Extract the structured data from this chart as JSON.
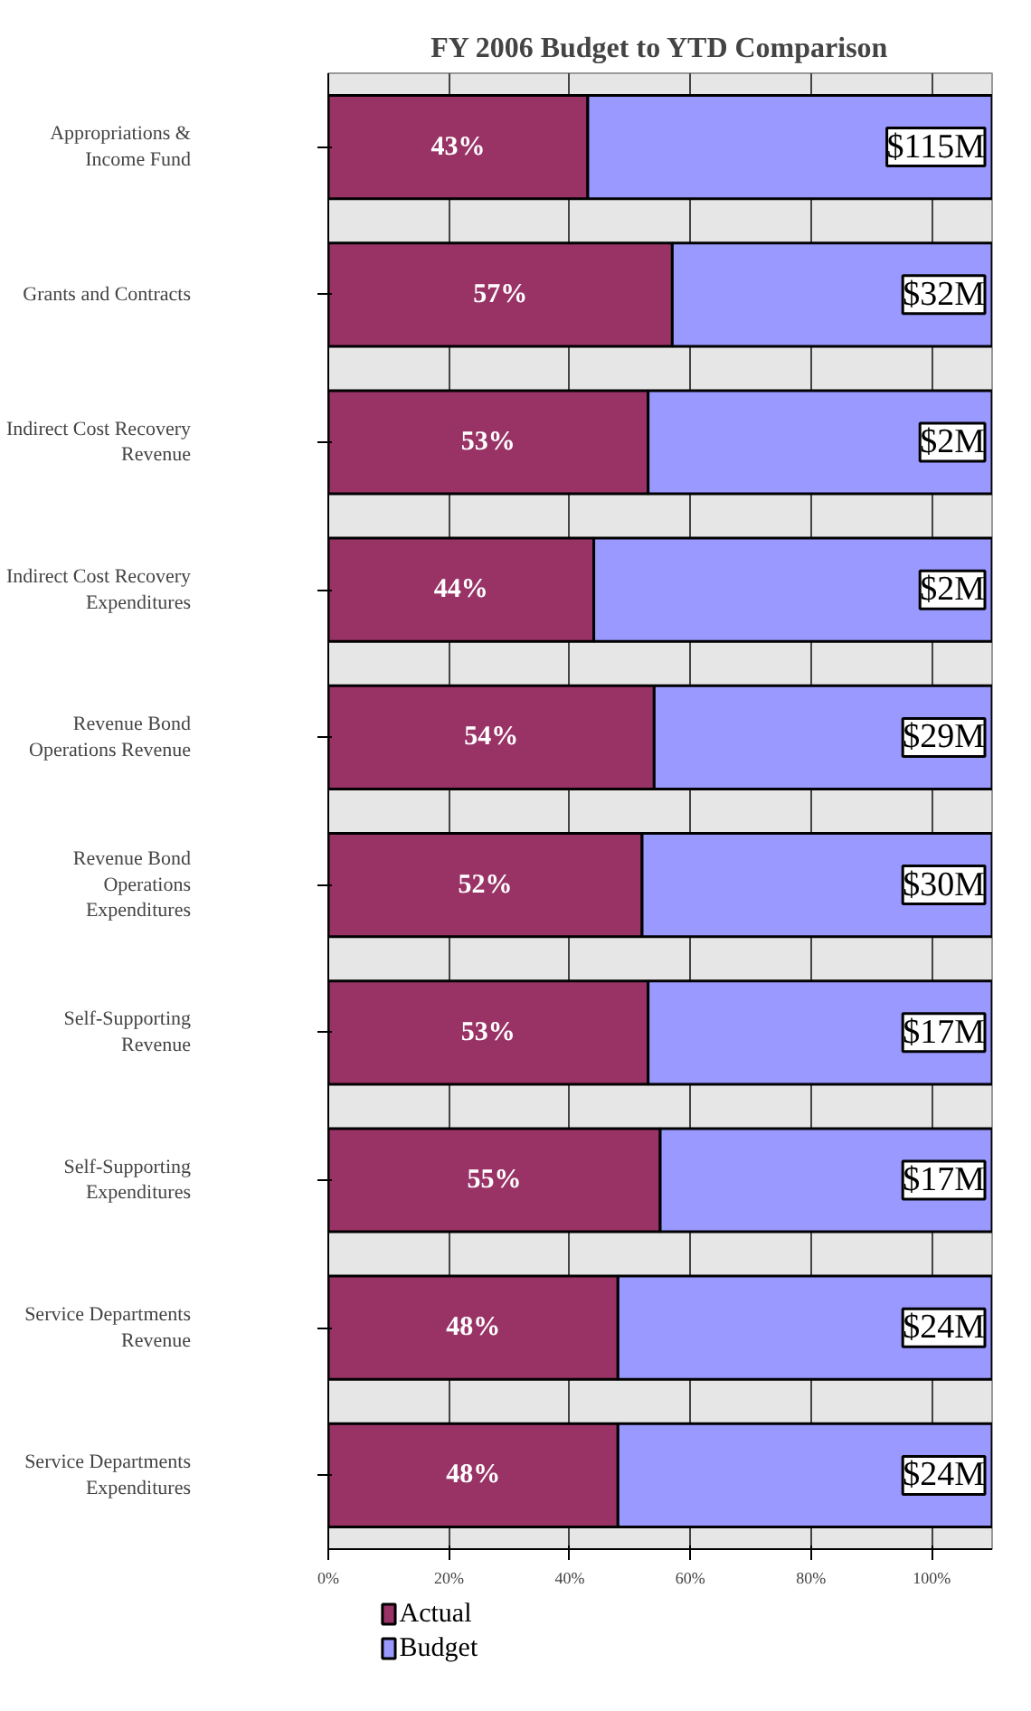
{
  "chart_data": {
    "type": "bar",
    "title": "FY 2006 Budget to YTD Comparison",
    "orientation": "horizontal",
    "stacked": true,
    "categories": [
      "Appropriations & Income Fund",
      "Grants and Contracts",
      "Indirect Cost Recovery Revenue",
      "Indirect Cost Recovery Expenditures",
      "Revenue Bond Operations Revenue",
      "Revenue Bond Operations Expenditures",
      "Self-Supporting Revenue",
      "Self-Supporting Expenditures",
      "Service Departments Revenue",
      "Service Departments Expenditures"
    ],
    "series": [
      {
        "name": "Actual",
        "color": "#993366",
        "values": [
          43,
          57,
          53,
          44,
          54,
          52,
          53,
          55,
          48,
          48
        ],
        "value_labels": [
          "43%",
          "57%",
          "53%",
          "44%",
          "54%",
          "52%",
          "53%",
          "55%",
          "48%",
          "48%"
        ]
      },
      {
        "name": "Budget",
        "color": "#9999ff",
        "values": [
          67,
          53,
          57,
          66,
          56,
          58,
          57,
          55,
          62,
          62
        ]
      }
    ],
    "annotations": [
      "$115M",
      "$32M",
      "$2M",
      "$2M",
      "$29M",
      "$30M",
      "$17M",
      "$17M",
      "$24M",
      "$24M"
    ],
    "xlim": [
      0,
      110
    ],
    "xticks": [
      {
        "value": 0,
        "label": "0%"
      },
      {
        "value": 20,
        "label": "20%"
      },
      {
        "value": 40,
        "label": "40%"
      },
      {
        "value": 60,
        "label": "60%"
      },
      {
        "value": 80,
        "label": "80%"
      },
      {
        "value": 100,
        "label": "100%"
      }
    ],
    "grid": "x",
    "legend": "bottom left"
  }
}
